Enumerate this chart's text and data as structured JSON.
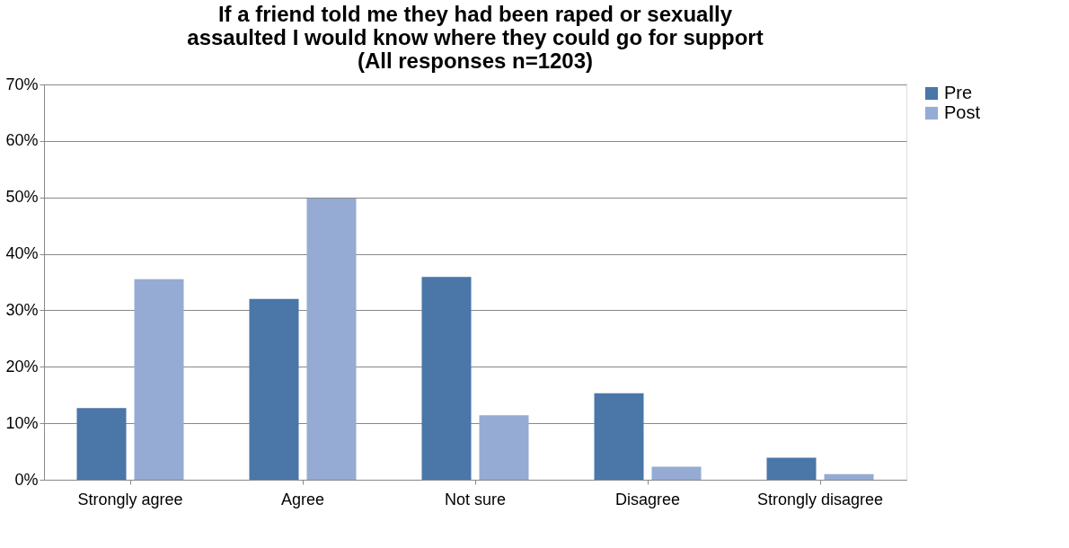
{
  "chart_data": {
    "type": "bar",
    "title": "If a friend told me they had been raped or sexually assaulted I would know where they could go for support (All responses n=1203)",
    "categories": [
      "Strongly agree",
      "Agree",
      "Not sure",
      "Disagree",
      "Strongly disagree"
    ],
    "series": [
      {
        "name": "Pre",
        "color": "#4a76a8",
        "values": [
          12.7,
          32.0,
          35.9,
          15.3,
          3.9
        ]
      },
      {
        "name": "Post",
        "color": "#95abd3",
        "values": [
          35.5,
          49.8,
          11.4,
          2.3,
          1.0
        ]
      }
    ],
    "ylim": [
      0,
      70
    ],
    "yticks": [
      {
        "value": 0,
        "label": "0%"
      },
      {
        "value": 10,
        "label": "10%"
      },
      {
        "value": 20,
        "label": "20%"
      },
      {
        "value": 30,
        "label": "30%"
      },
      {
        "value": 40,
        "label": "40%"
      },
      {
        "value": 50,
        "label": "50%"
      },
      {
        "value": 60,
        "label": "60%"
      },
      {
        "value": 70,
        "label": "70%"
      }
    ],
    "grid": "y",
    "legend": "right"
  }
}
